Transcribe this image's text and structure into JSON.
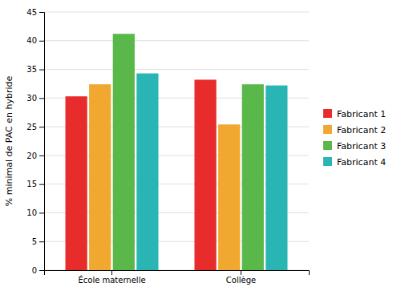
{
  "chart_data": {
    "type": "bar",
    "categories": [
      "École maternelle",
      "Collège"
    ],
    "series": [
      {
        "name": "Fabricant 1",
        "color": "#e82c2c",
        "values": [
          30.3,
          33.2
        ]
      },
      {
        "name": "Fabricant 2",
        "color": "#f0a830",
        "values": [
          32.4,
          25.4
        ]
      },
      {
        "name": "Fabricant 3",
        "color": "#5ab84b",
        "values": [
          41.2,
          32.4
        ]
      },
      {
        "name": "Fabricant 4",
        "color": "#2ab5b5",
        "values": [
          34.3,
          32.2
        ]
      }
    ],
    "ylabel": "% minimal de PAC en hybride",
    "ylim": [
      0,
      45
    ],
    "yticks": [
      0,
      5,
      10,
      15,
      20,
      25,
      30,
      35,
      40,
      45
    ],
    "grid": true,
    "legend": "right"
  }
}
